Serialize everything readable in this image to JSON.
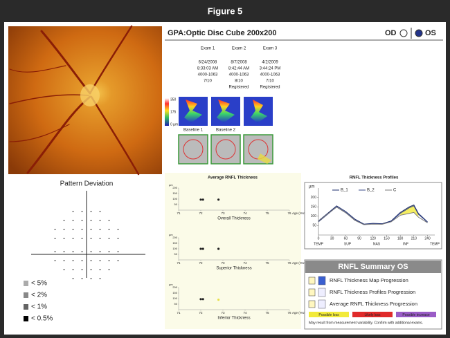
{
  "figure_title": "Figure 5",
  "pattern_deviation": {
    "title": "Pattern Deviation",
    "legend": [
      "< 5%",
      "< 2%",
      "< 1%",
      "< 0.5%"
    ]
  },
  "gpa": {
    "title": "GPA:Optic Disc Cube 200x200",
    "od": "OD",
    "os": "OS",
    "exams": [
      {
        "name": "Exam 1",
        "lines": [
          "6/24/2008",
          "8:33:03 AM",
          "4000-1063",
          "7/10"
        ]
      },
      {
        "name": "Exam 2",
        "lines": [
          "8/7/2008",
          "8:42:44 AM",
          "4000-1063",
          "8/10",
          "Registered"
        ]
      },
      {
        "name": "Exam 3",
        "lines": [
          "4/2/2009",
          "3:44:24 PM",
          "4000-1063",
          "7/10",
          "Registered"
        ]
      }
    ],
    "colorbar": [
      "350",
      "175",
      "0 µm"
    ],
    "baselines": [
      "Baseline 1",
      "Baseline 2"
    ]
  },
  "average_rnfl": {
    "title": "Average RNFL Thickness",
    "ylabel": "µm",
    "xlabel": "Age (Years)",
    "xlim": [
      71,
      76
    ],
    "xticks": [
      71,
      72,
      73,
      74,
      75,
      76
    ],
    "ylim": [
      0,
      200
    ],
    "yticks": [
      50,
      100,
      150,
      200
    ],
    "panels": [
      {
        "label": "Overall Thickness",
        "x": [
          72,
          72.1,
          72.8
        ],
        "values": [
          95,
          95,
          95
        ],
        "colors": [
          "#222",
          "#222",
          "#222"
        ]
      },
      {
        "label": "Superior Thickness",
        "x": [
          72,
          72.1,
          72.8
        ],
        "values": [
          100,
          100,
          100
        ],
        "colors": [
          "#222",
          "#222",
          "#222"
        ]
      },
      {
        "label": "Inferior Thickness",
        "x": [
          72,
          72.1,
          72.8
        ],
        "values": [
          95,
          95,
          90
        ],
        "colors": [
          "#222",
          "#222",
          "#e8e04a"
        ]
      }
    ]
  },
  "profiles": {
    "title": "RNFL Thickness Profiles",
    "ylabel": "µm",
    "xlim": [
      0,
      256
    ],
    "ylim": [
      0,
      250
    ],
    "xticks": [
      0,
      30,
      60,
      90,
      120,
      150,
      180,
      210,
      240
    ],
    "yticks": [
      50,
      100,
      150,
      200
    ],
    "regions": [
      "TEMP",
      "SUP",
      "NAS",
      "INF",
      "TEMP"
    ],
    "x": [
      0,
      20,
      40,
      60,
      80,
      100,
      120,
      140,
      160,
      180,
      200,
      210,
      220,
      240
    ],
    "series": [
      {
        "name": "B_1",
        "color": "#1a2b6b",
        "values": [
          75,
          115,
          155,
          125,
          85,
          58,
          62,
          60,
          75,
          120,
          150,
          160,
          115,
          70
        ]
      },
      {
        "name": "B_2",
        "color": "#3a4a8a",
        "values": [
          70,
          110,
          150,
          120,
          80,
          55,
          60,
          58,
          72,
          115,
          145,
          155,
          110,
          68
        ]
      },
      {
        "name": "C",
        "color": "#7a7a7a",
        "values": [
          72,
          112,
          148,
          118,
          78,
          55,
          58,
          57,
          70,
          105,
          115,
          120,
          95,
          65
        ]
      }
    ]
  },
  "summary": {
    "title": "RNFL Summary OS",
    "items": [
      "RNFL Thickness Map Progression",
      "RNFL Thickness Profiles Progression",
      "Average RNFL Thickness Progression"
    ],
    "legend": [
      {
        "label": "Possible loss",
        "color": "#f2ea3a"
      },
      {
        "label": "Likely loss",
        "color": "#e02a2a"
      },
      {
        "label": "Possible increase",
        "color": "#9a5cc6"
      }
    ],
    "note": "May result from measurement variability. Confirm with additional exams."
  }
}
